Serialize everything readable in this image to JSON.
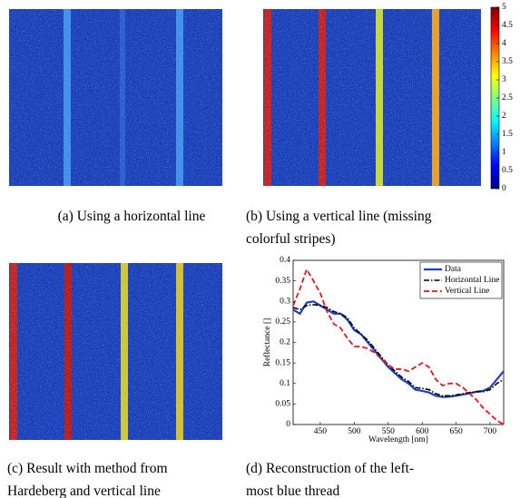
{
  "figures": [
    {
      "caption": [
        "(a)  Using a horizontal line"
      ]
    },
    {
      "caption": [
        "(b)  Using a vertical line (missing",
        "colorful stripes)"
      ]
    },
    {
      "caption": [
        "(c)  Result with method from",
        "Hardeberg and vertical line"
      ]
    },
    {
      "caption": [
        "(d)  Reconstruction of the left-",
        "most blue thread"
      ]
    }
  ],
  "colorbar": {
    "lim": [
      0,
      5
    ],
    "ticks": [
      0,
      0.5,
      1,
      1.5,
      2,
      2.5,
      3,
      3.5,
      4,
      4.5,
      5
    ]
  },
  "chart_data": {
    "type": "line",
    "x_label": "Wavelength [nm]",
    "y_label": "Reflectance []",
    "x": [
      410,
      420,
      430,
      440,
      450,
      460,
      470,
      480,
      490,
      500,
      510,
      520,
      530,
      540,
      550,
      560,
      570,
      580,
      590,
      600,
      610,
      620,
      630,
      640,
      650,
      660,
      670,
      680,
      690,
      700,
      710,
      720
    ],
    "series": [
      {
        "name": "Data",
        "color": "#1f3fbf",
        "dash": "",
        "width": 2.2,
        "values": [
          0.28,
          0.27,
          0.297,
          0.3,
          0.29,
          0.28,
          0.27,
          0.27,
          0.255,
          0.23,
          0.22,
          0.2,
          0.18,
          0.16,
          0.14,
          0.125,
          0.11,
          0.1,
          0.085,
          0.082,
          0.078,
          0.07,
          0.067,
          0.068,
          0.07,
          0.073,
          0.076,
          0.08,
          0.082,
          0.09,
          0.11,
          0.13
        ]
      },
      {
        "name": "Horizontal Line",
        "color": "#000000",
        "dash": "6 2 1.5 2",
        "width": 1.6,
        "values": [
          0.285,
          0.28,
          0.29,
          0.292,
          0.29,
          0.285,
          0.275,
          0.27,
          0.26,
          0.235,
          0.22,
          0.205,
          0.185,
          0.165,
          0.145,
          0.13,
          0.115,
          0.105,
          0.09,
          0.088,
          0.085,
          0.075,
          0.07,
          0.07,
          0.072,
          0.075,
          0.078,
          0.08,
          0.08,
          0.085,
          0.1,
          0.11
        ]
      },
      {
        "name": "Vertical Line",
        "color": "#e8141b",
        "dash": "6 3",
        "width": 1.8,
        "values": [
          0.29,
          0.33,
          0.378,
          0.35,
          0.32,
          0.275,
          0.245,
          0.235,
          0.21,
          0.19,
          0.19,
          0.185,
          0.175,
          0.16,
          0.145,
          0.135,
          0.135,
          0.13,
          0.14,
          0.15,
          0.14,
          0.11,
          0.095,
          0.1,
          0.1,
          0.09,
          0.075,
          0.06,
          0.04,
          0.025,
          0.01,
          0
        ]
      }
    ],
    "xlim": [
      410,
      720
    ],
    "xticks": [
      450,
      500,
      550,
      600,
      650,
      700
    ],
    "ylim": [
      0,
      0.4
    ],
    "yticks": [
      0,
      0.05,
      0.1,
      0.15,
      0.2,
      0.25,
      0.3,
      0.35,
      0.4
    ],
    "legend": "top-right"
  }
}
